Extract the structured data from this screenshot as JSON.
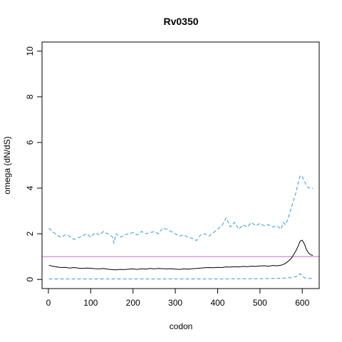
{
  "chart_data": {
    "type": "line",
    "title": "Rv0350",
    "xlabel": "codon",
    "ylabel": "omega (dN/dS)",
    "xlim": [
      -15,
      640
    ],
    "ylim": [
      -0.4,
      10.4
    ],
    "xticks": [
      0,
      100,
      200,
      300,
      400,
      500,
      600
    ],
    "yticks": [
      0,
      2,
      4,
      6,
      8,
      10
    ],
    "grid": false,
    "legend": "none",
    "reference_line": {
      "y": 1,
      "color": "#cc66cc"
    },
    "series": [
      {
        "style": "solid",
        "color": "#000000",
        "x": [
          1,
          10,
          20,
          30,
          40,
          50,
          60,
          70,
          80,
          90,
          100,
          110,
          120,
          130,
          140,
          150,
          160,
          170,
          180,
          190,
          200,
          210,
          220,
          230,
          240,
          250,
          260,
          270,
          280,
          290,
          300,
          310,
          320,
          330,
          340,
          350,
          360,
          370,
          380,
          390,
          400,
          410,
          420,
          430,
          440,
          450,
          460,
          470,
          480,
          490,
          500,
          510,
          520,
          530,
          540,
          550,
          560,
          570,
          575,
          580,
          585,
          590,
          595,
          600,
          605,
          610,
          615,
          620,
          625
        ],
        "y": [
          0.62,
          0.58,
          0.55,
          0.52,
          0.53,
          0.5,
          0.52,
          0.5,
          0.48,
          0.5,
          0.49,
          0.47,
          0.46,
          0.48,
          0.45,
          0.43,
          0.42,
          0.44,
          0.43,
          0.45,
          0.46,
          0.44,
          0.47,
          0.45,
          0.48,
          0.46,
          0.48,
          0.47,
          0.46,
          0.47,
          0.45,
          0.44,
          0.46,
          0.45,
          0.47,
          0.48,
          0.5,
          0.51,
          0.52,
          0.51,
          0.53,
          0.52,
          0.55,
          0.54,
          0.56,
          0.55,
          0.57,
          0.56,
          0.58,
          0.57,
          0.59,
          0.6,
          0.58,
          0.61,
          0.6,
          0.62,
          0.7,
          0.85,
          0.95,
          1.1,
          1.25,
          1.45,
          1.68,
          1.72,
          1.55,
          1.3,
          1.15,
          1.08,
          1.05
        ]
      },
      {
        "style": "dashed",
        "color": "#3399dd",
        "x": [
          1,
          10,
          20,
          30,
          40,
          50,
          60,
          70,
          80,
          90,
          100,
          110,
          120,
          130,
          140,
          150,
          155,
          160,
          170,
          180,
          190,
          200,
          210,
          220,
          230,
          240,
          250,
          260,
          270,
          280,
          290,
          300,
          310,
          320,
          330,
          340,
          350,
          360,
          370,
          380,
          390,
          400,
          410,
          420,
          430,
          440,
          450,
          460,
          470,
          480,
          490,
          500,
          510,
          520,
          530,
          540,
          550,
          555,
          560,
          565,
          570,
          575,
          580,
          585,
          590,
          595,
          600,
          605,
          610,
          615,
          620,
          625
        ],
        "y": [
          2.25,
          2.1,
          1.95,
          1.85,
          1.95,
          1.9,
          1.75,
          1.82,
          1.9,
          2.0,
          1.85,
          2.05,
          1.95,
          2.1,
          2.0,
          1.9,
          1.6,
          2.0,
          1.85,
          1.95,
          2.0,
          2.05,
          1.95,
          2.1,
          2.0,
          2.05,
          2.1,
          2.0,
          2.25,
          2.2,
          2.1,
          2.0,
          1.9,
          1.95,
          1.85,
          1.8,
          1.7,
          1.95,
          2.0,
          1.9,
          2.05,
          2.2,
          2.35,
          2.7,
          2.3,
          2.5,
          2.2,
          2.4,
          2.3,
          2.5,
          2.35,
          2.45,
          2.35,
          2.4,
          2.3,
          2.35,
          2.2,
          2.5,
          2.4,
          2.6,
          2.9,
          3.2,
          3.5,
          3.8,
          4.2,
          4.55,
          4.5,
          4.3,
          4.1,
          4.0,
          4.02,
          3.98
        ]
      },
      {
        "style": "dashed",
        "color": "#3399dd",
        "x": [
          1,
          50,
          100,
          150,
          200,
          250,
          300,
          350,
          400,
          450,
          500,
          550,
          575,
          585,
          590,
          595,
          600,
          605,
          610,
          620,
          625
        ],
        "y": [
          0.02,
          0.02,
          0.02,
          0.02,
          0.02,
          0.02,
          0.02,
          0.02,
          0.02,
          0.03,
          0.03,
          0.05,
          0.08,
          0.12,
          0.18,
          0.25,
          0.15,
          0.07,
          0.05,
          0.04,
          0.04
        ]
      }
    ]
  }
}
